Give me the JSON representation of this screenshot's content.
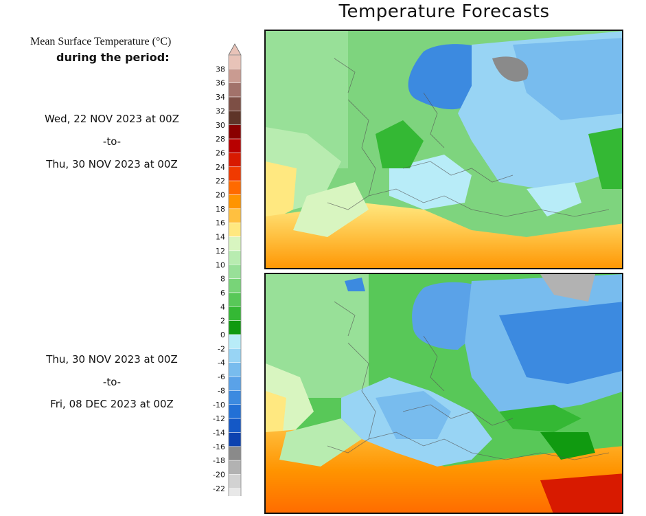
{
  "title": "Temperature Forecasts",
  "legend": {
    "heading_line1": "Mean Surface Temperature (°C)",
    "heading_line2": "during the period:",
    "ticks": [
      "38",
      "36",
      "34",
      "32",
      "30",
      "28",
      "26",
      "24",
      "22",
      "20",
      "18",
      "16",
      "14",
      "12",
      "10",
      "8",
      "6",
      "4",
      "2",
      "0",
      "-2",
      "-4",
      "-6",
      "-8",
      "-10",
      "-12",
      "-14",
      "-16",
      "-18",
      "-20",
      "-22"
    ],
    "colors": [
      "#e8c3b8",
      "#c99b91",
      "#a2726a",
      "#7d4f45",
      "#5e3428",
      "#8a0000",
      "#b80000",
      "#d81a00",
      "#f03a00",
      "#ff6a00",
      "#ff9400",
      "#ffc040",
      "#ffe880",
      "#d8f5c0",
      "#b8ecb0",
      "#98e098",
      "#78d478",
      "#58c858",
      "#34b834",
      "#109a10",
      "#b8ecf8",
      "#98d4f4",
      "#78bcee",
      "#5aa2e8",
      "#3c8ae0",
      "#2270d6",
      "#1458c6",
      "#0c42b0",
      "#8a8a8a",
      "#b2b2b2",
      "#d2d2d2",
      "#e8e8e8"
    ]
  },
  "periods": [
    {
      "start": "Wed, 22 NOV 2023 at 00Z",
      "to": "-to-",
      "end": "Thu, 30 NOV 2023 at 00Z"
    },
    {
      "start": "Thu, 30 NOV 2023 at 00Z",
      "to": "-to-",
      "end": "Fri, 08 DEC 2023 at 00Z"
    }
  ]
}
